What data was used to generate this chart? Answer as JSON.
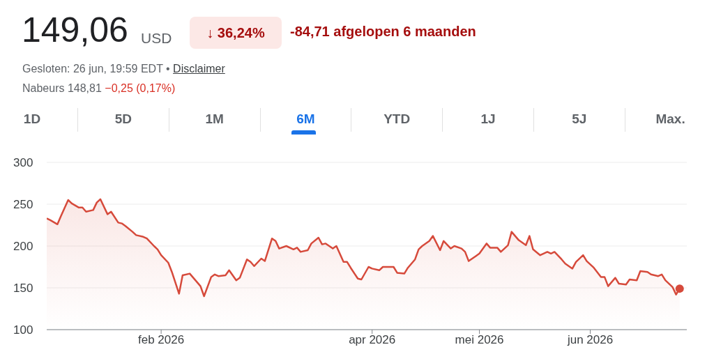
{
  "chart_data": {
    "type": "area",
    "title": "149,06",
    "annotations": [
      "USD",
      "↓ 36,24%",
      "-84,71 afgelopen 6 maanden",
      "Gesloten: 26 jun, 19:59 EDT •",
      "Disclaimer",
      "Nabeurs 148,81",
      "−0,25 (0,17%)",
      "1D",
      "5D",
      "1M",
      "6M",
      "YTD",
      "1J",
      "5J",
      "Max."
    ],
    "x": [
      "2025-12-31",
      "2026-01-01",
      "2026-01-03",
      "2026-01-04",
      "2026-01-06",
      "2026-01-07",
      "2026-01-09",
      "2026-01-10",
      "2026-01-11",
      "2026-01-13",
      "2026-01-14",
      "2026-01-15",
      "2026-01-17",
      "2026-01-18",
      "2026-01-20",
      "2026-01-21",
      "2026-01-22",
      "2026-01-24",
      "2026-01-25",
      "2026-01-27",
      "2026-01-28",
      "2026-01-30",
      "2026-01-31",
      "2026-02-01",
      "2026-02-03",
      "2026-02-04",
      "2026-02-06",
      "2026-02-07",
      "2026-02-09",
      "2026-02-10",
      "2026-02-12",
      "2026-02-13",
      "2026-02-15",
      "2026-02-16",
      "2026-02-17",
      "2026-02-19",
      "2026-02-20",
      "2026-02-22",
      "2026-02-23",
      "2026-02-25",
      "2026-02-26",
      "2026-02-27",
      "2026-03-01",
      "2026-03-02",
      "2026-03-04",
      "2026-03-05",
      "2026-03-06",
      "2026-03-08",
      "2026-03-10",
      "2026-03-11",
      "2026-03-12",
      "2026-03-14",
      "2026-03-15",
      "2026-03-17",
      "2026-03-18",
      "2026-03-19",
      "2026-03-21",
      "2026-03-22",
      "2026-03-24",
      "2026-03-25",
      "2026-03-26",
      "2026-03-28",
      "2026-03-29",
      "2026-03-31",
      "2026-04-01",
      "2026-04-03",
      "2026-04-04",
      "2026-04-05",
      "2026-04-07",
      "2026-04-08",
      "2026-04-10",
      "2026-04-11",
      "2026-04-13",
      "2026-04-14",
      "2026-04-15",
      "2026-04-17",
      "2026-04-18",
      "2026-04-20",
      "2026-04-21",
      "2026-04-23",
      "2026-04-24",
      "2026-04-26",
      "2026-04-27",
      "2026-04-28",
      "2026-04-30",
      "2026-05-01",
      "2026-05-03",
      "2026-05-04",
      "2026-05-06",
      "2026-05-07",
      "2026-05-09",
      "2026-05-10",
      "2026-05-12",
      "2026-05-14",
      "2026-05-15",
      "2026-05-16",
      "2026-05-18",
      "2026-05-20",
      "2026-05-21",
      "2026-05-22",
      "2026-05-24",
      "2026-05-25",
      "2026-05-27",
      "2026-05-28",
      "2026-05-30",
      "2026-05-31",
      "2026-06-02",
      "2026-06-04",
      "2026-06-05",
      "2026-06-06",
      "2026-06-08",
      "2026-06-09",
      "2026-06-11",
      "2026-06-12",
      "2026-06-14",
      "2026-06-15",
      "2026-06-17",
      "2026-06-18",
      "2026-06-20",
      "2026-06-21",
      "2026-06-22",
      "2026-06-24",
      "2026-06-25",
      "2026-06-26"
    ],
    "series": [
      {
        "color": "#d64a3b",
        "values": [
          233,
          231,
          226,
          236,
          255,
          251,
          246,
          246,
          241,
          243,
          252,
          256,
          238,
          241,
          228,
          227,
          224,
          217,
          213,
          211,
          209,
          200,
          196,
          189,
          180,
          169,
          143,
          165,
          167,
          162,
          152,
          140,
          163,
          166,
          164,
          165,
          171,
          159,
          162,
          184,
          181,
          176,
          185,
          182,
          209,
          206,
          197,
          200,
          196,
          198,
          193,
          195,
          203,
          210,
          202,
          203,
          197,
          200,
          181,
          181,
          174,
          161,
          160,
          175,
          173,
          171,
          175,
          175,
          175,
          168,
          167,
          174,
          184,
          196,
          200,
          206,
          212,
          195,
          206,
          197,
          200,
          197,
          193,
          182,
          188,
          191,
          203,
          198,
          198,
          193,
          201,
          217,
          207,
          201,
          212,
          196,
          189,
          193,
          191,
          193,
          184,
          179,
          173,
          181,
          189,
          182,
          174,
          163,
          163,
          152,
          162,
          155,
          154,
          160,
          159,
          170,
          169,
          166,
          164,
          166,
          159,
          151,
          142,
          149.06
        ]
      }
    ],
    "xlim": [
      "2025-12-31",
      "2026-06-28"
    ],
    "xticks": [
      {
        "value": "2026-02-01",
        "label": "feb 2026"
      },
      {
        "value": "2026-04-01",
        "label": "apr 2026"
      },
      {
        "value": "2026-05-01",
        "label": "mei 2026"
      },
      {
        "value": "2026-06-01",
        "label": "jun 2026"
      }
    ],
    "ylim": [
      100,
      300
    ],
    "yticks": [
      100,
      150,
      200,
      250,
      300
    ],
    "grid": "y",
    "legend": false
  }
}
